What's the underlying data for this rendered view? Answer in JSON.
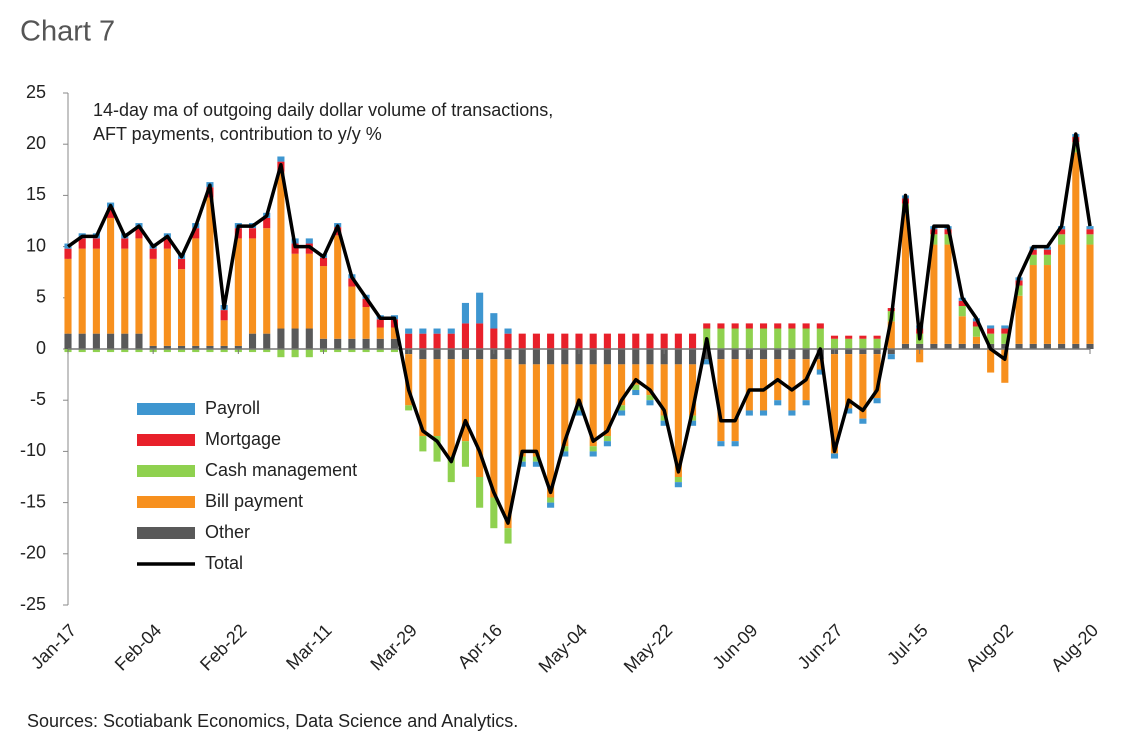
{
  "chart_data": {
    "type": "bar",
    "stacked": true,
    "title": "Chart 7",
    "annotation": [
      "14-day ma of outgoing daily dollar volume of transactions,",
      "AFT payments, contribution to y/y %"
    ],
    "source": "Sources: Scotiabank Economics, Data Science and Analytics.",
    "categories": [
      "Jan-17",
      null,
      null,
      null,
      null,
      null,
      "Feb-04",
      null,
      null,
      null,
      null,
      null,
      "Feb-22",
      null,
      null,
      null,
      null,
      null,
      "Mar-11",
      null,
      null,
      null,
      null,
      null,
      "Mar-29",
      null,
      null,
      null,
      null,
      null,
      "Apr-16",
      null,
      null,
      null,
      null,
      null,
      "May-04",
      null,
      null,
      null,
      null,
      null,
      "May-22",
      null,
      null,
      null,
      null,
      null,
      "Jun-09",
      null,
      null,
      null,
      null,
      null,
      "Jun-27",
      null,
      null,
      null,
      null,
      null,
      "Jul-15",
      null,
      null,
      null,
      null,
      null,
      "Aug-02",
      null,
      null,
      null,
      null,
      null,
      "Aug-20"
    ],
    "series": [
      {
        "name": "Payroll",
        "color": "#3e96d0",
        "values": [
          0.5,
          0.5,
          0.5,
          0.5,
          0.5,
          0.5,
          0.5,
          0.5,
          0.5,
          0.5,
          0.5,
          0.5,
          0.5,
          0.5,
          0.5,
          0.5,
          0.5,
          0.5,
          0.4,
          0.4,
          0.4,
          0.4,
          0.4,
          0.4,
          0.5,
          0.5,
          0.5,
          0.5,
          2,
          3,
          1.5,
          0.5,
          -0.5,
          -0.5,
          -0.5,
          -0.5,
          -0.5,
          -0.5,
          -0.5,
          -0.5,
          -0.5,
          -0.5,
          -0.5,
          -0.5,
          -0.5,
          -0.5,
          -0.5,
          -0.5,
          -0.5,
          -0.5,
          -0.5,
          -0.5,
          -0.5,
          -0.5,
          -0.5,
          -0.5,
          -0.5,
          -0.5,
          -0.5,
          0.3,
          0.3,
          0.3,
          0.3,
          0.3,
          0.3,
          0.3,
          0.3,
          0.3,
          0.3,
          0.3,
          0.3,
          0.3,
          0.3
        ]
      },
      {
        "name": "Mortgage",
        "color": "#e8202a",
        "values": [
          1,
          1,
          1,
          1,
          1,
          1,
          1,
          1,
          1,
          1,
          1,
          1,
          1,
          1,
          1,
          1,
          1,
          1,
          0.8,
          0.8,
          0.8,
          0.8,
          0.8,
          0.8,
          1.5,
          1.5,
          1.5,
          1.5,
          2.5,
          2.5,
          2,
          1.5,
          1.5,
          1.5,
          1.5,
          1.5,
          1.5,
          1.5,
          1.5,
          1.5,
          1.5,
          1.5,
          1.5,
          1.5,
          1.5,
          0.5,
          0.5,
          0.5,
          0.5,
          0.5,
          0.5,
          0.5,
          0.5,
          0.5,
          0.3,
          0.3,
          0.3,
          0.3,
          0.3,
          0.5,
          0.5,
          0.5,
          0.5,
          0.5,
          0.5,
          0.5,
          0.5,
          0.5,
          0.5,
          0.5,
          0.5,
          0.5,
          0.5
        ]
      },
      {
        "name": "Cash management",
        "color": "#8fd14f",
        "values": [
          -0.3,
          -0.3,
          -0.3,
          -0.3,
          -0.3,
          -0.3,
          -0.3,
          -0.3,
          -0.3,
          -0.3,
          -0.3,
          -0.3,
          -0.3,
          -0.3,
          -0.3,
          -0.8,
          -0.8,
          -0.8,
          -0.3,
          -0.3,
          -0.3,
          -0.3,
          -0.3,
          -0.3,
          -0.5,
          -1.5,
          -2.5,
          -2.5,
          -2.5,
          -3,
          -3,
          -1.5,
          -0.5,
          -0.5,
          -0.5,
          -0.5,
          -0.5,
          -0.5,
          -0.5,
          -0.5,
          -0.5,
          -0.5,
          -0.5,
          -0.5,
          -0.5,
          2,
          2,
          2,
          2,
          2,
          2,
          2,
          2,
          2,
          1,
          1,
          1,
          1,
          1,
          1,
          1,
          1,
          1,
          1,
          1,
          1,
          1,
          1,
          1,
          1,
          1,
          1,
          1
        ]
      },
      {
        "name": "Bill payment",
        "color": "#f7901e",
        "values": [
          7.3,
          8.3,
          8.3,
          11.3,
          8.3,
          9.3,
          8.5,
          9.5,
          7.5,
          10.5,
          14.5,
          2.5,
          10.5,
          9.3,
          10.3,
          15.3,
          7.3,
          7.3,
          7.1,
          10.1,
          5.1,
          3.1,
          1.1,
          1.1,
          -5,
          -7.5,
          -7.5,
          -9.5,
          -8,
          -11.5,
          -13.5,
          -16.5,
          -9,
          -9,
          -13,
          -8,
          -4,
          -8,
          -7,
          -4,
          -2,
          -3,
          -5,
          -11,
          -5,
          0,
          -8,
          -8,
          -5,
          -5,
          -4,
          -5,
          -4,
          -1,
          -9.7,
          -5.3,
          -6.3,
          -4.3,
          2.7,
          12.7,
          -1.3,
          9.7,
          9.7,
          2.7,
          0.7,
          -2.3,
          -3.3,
          4.7,
          7.7,
          7.7,
          9.7,
          18.7,
          9.7
        ]
      },
      {
        "name": "Other",
        "color": "#595959",
        "values": [
          1.5,
          1.5,
          1.5,
          1.5,
          1.5,
          1.5,
          0.3,
          0.3,
          0.3,
          0.3,
          0.3,
          0.3,
          0.3,
          1.5,
          1.5,
          2,
          2,
          2,
          1,
          1,
          1,
          1,
          1,
          1,
          -0.5,
          -1,
          -1,
          -1,
          -1,
          -1,
          -1,
          -1,
          -1.5,
          -1.5,
          -1.5,
          -1.5,
          -1.5,
          -1.5,
          -1.5,
          -1.5,
          -1.5,
          -1.5,
          -1.5,
          -1.5,
          -1.5,
          -1,
          -1,
          -1,
          -1,
          -1,
          -1,
          -1,
          -1,
          -1,
          -0.5,
          -0.5,
          -0.5,
          -0.5,
          -0.5,
          0.5,
          0.5,
          0.5,
          0.5,
          0.5,
          0.5,
          0.5,
          0.5,
          0.5,
          0.5,
          0.5,
          0.5,
          0.5,
          0.5
        ]
      },
      {
        "name": "Total",
        "type": "line",
        "color": "#000000",
        "values": [
          10,
          11,
          11,
          14,
          11,
          12,
          10,
          11,
          9,
          12,
          16,
          4,
          12,
          12,
          13,
          18,
          10,
          10,
          9,
          12,
          7,
          5,
          3,
          3,
          -4,
          -8,
          -9,
          -11,
          -7,
          -10,
          -14,
          -17,
          -10,
          -10,
          -14,
          -9,
          -5,
          -9,
          -8,
          -5,
          -3,
          -4,
          -6,
          -12,
          -6,
          1,
          -7,
          -7,
          -4,
          -4,
          -3,
          -4,
          -3,
          0,
          -10,
          -5,
          -6,
          -4,
          3,
          15,
          1,
          12,
          12,
          5,
          3,
          0,
          -1,
          7,
          10,
          10,
          12,
          21,
          12
        ]
      }
    ],
    "ylim": [
      -25,
      25
    ],
    "yticks": [
      -25,
      -20,
      -15,
      -10,
      -5,
      0,
      5,
      10,
      15,
      20,
      25
    ],
    "grid": false
  }
}
